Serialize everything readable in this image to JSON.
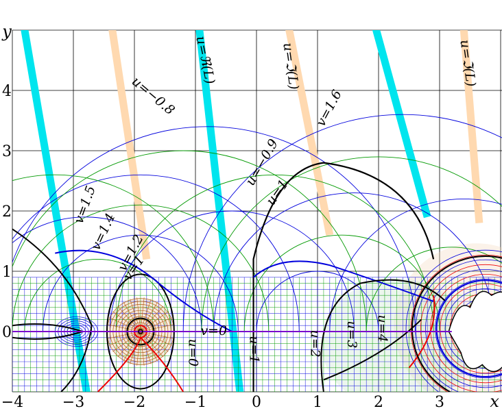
{
  "axes": {
    "x_name": "x",
    "y_name": "y",
    "x_range": [
      -4,
      4
    ],
    "y_range": [
      -1,
      5
    ],
    "x_ticks": [
      "−4",
      "−3",
      "−2",
      "−1",
      "0",
      "1",
      "2",
      "3"
    ],
    "y_ticks": [
      "0",
      "1",
      "2",
      "3",
      "4"
    ],
    "grid": true
  },
  "colors": {
    "u_lines": "#0000dd",
    "v_lines": "#009900",
    "cut_real": "#00e5ee",
    "cut_imag": "#ffd9b0",
    "axis_line": "#7a00cc",
    "level_black": "#000000",
    "level_red": "#ee0000"
  },
  "labels": [
    {
      "text": "u=−0.8",
      "x": -1.7,
      "y": 3.9,
      "rot": 40
    },
    {
      "text": "u=ℜ(L)",
      "x": -0.85,
      "y": 4.5,
      "rot": 78
    },
    {
      "text": "u=ℑ(L)",
      "x": 0.55,
      "y": 4.4,
      "rot": 82
    },
    {
      "text": "u=ℑ(L)",
      "x": 3.45,
      "y": 4.45,
      "rot": 82
    },
    {
      "text": "v=1.6",
      "x": 1.2,
      "y": 3.7,
      "rot": -62
    },
    {
      "text": "u=−0.9",
      "x": 0.1,
      "y": 2.8,
      "rot": -60
    },
    {
      "text": "u=1",
      "x": 0.35,
      "y": 2.3,
      "rot": -55
    },
    {
      "text": "v=1.5",
      "x": -2.8,
      "y": 2.1,
      "rot": -70
    },
    {
      "text": "v=1.4",
      "x": -2.5,
      "y": 1.65,
      "rot": -65
    },
    {
      "text": "v=1.2",
      "x": -2.05,
      "y": 1.3,
      "rot": -62
    },
    {
      "text": "v=1",
      "x": -2.0,
      "y": 1.05,
      "rot": -55
    },
    {
      "text": "v=0",
      "x": -0.7,
      "y": 0.0,
      "rot": 0
    },
    {
      "text": "u=0",
      "x": -1.05,
      "y": -0.35,
      "rot": 90
    },
    {
      "text": "u=1",
      "x": -0.05,
      "y": -0.3,
      "rot": 90
    },
    {
      "text": "u=2",
      "x": 0.95,
      "y": -0.2,
      "rot": 90
    },
    {
      "text": "u=3",
      "x": 1.55,
      "y": -0.05,
      "rot": 90
    },
    {
      "text": "u=4",
      "x": 2.05,
      "y": 0.05,
      "rot": 90
    }
  ]
}
